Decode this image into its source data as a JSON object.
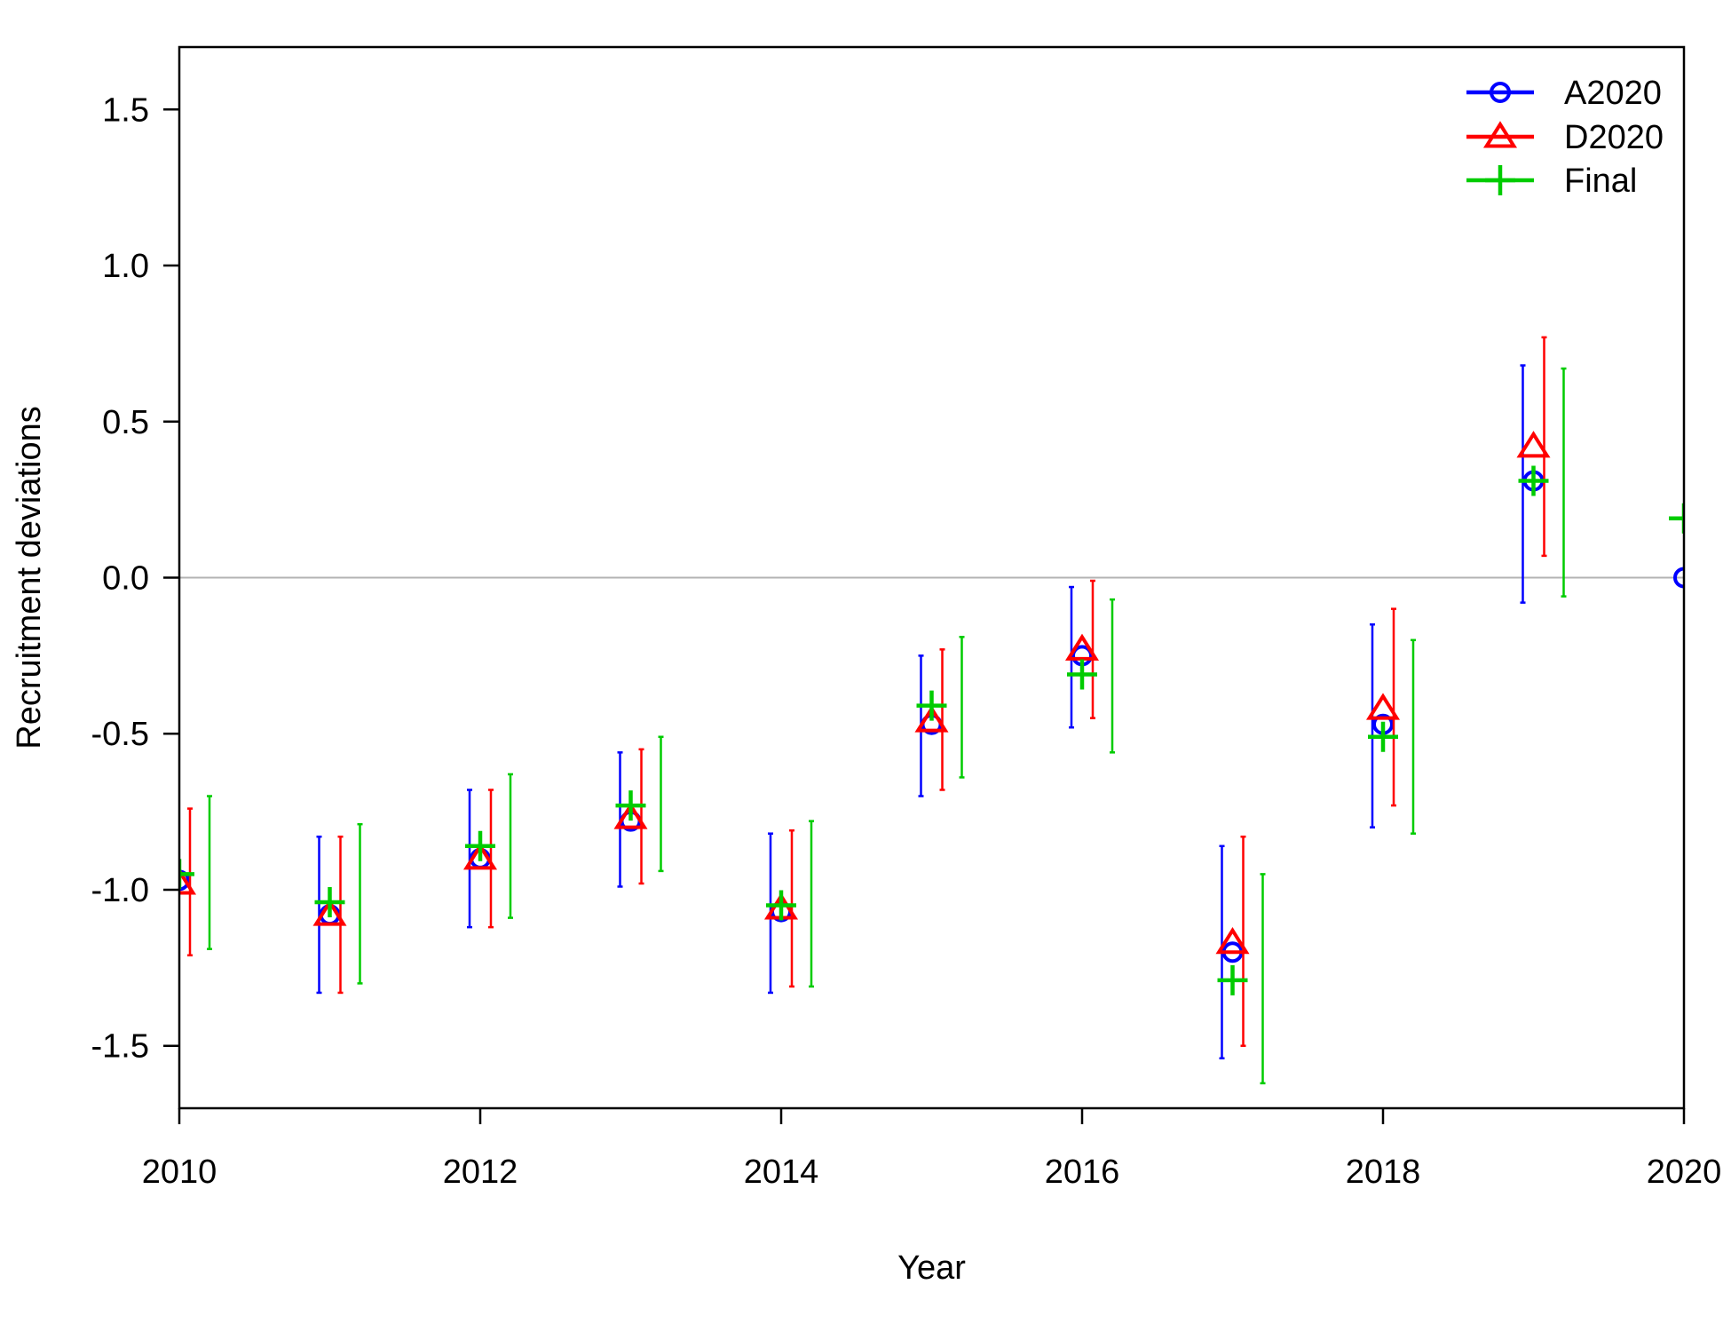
{
  "chart_data": {
    "type": "scatter",
    "title": "",
    "xlabel": "Year",
    "ylabel": "Recruitment deviations",
    "xlim": [
      2010,
      2020
    ],
    "ylim": [
      -1.7,
      1.7
    ],
    "x_ticks": [
      "2010",
      "2012",
      "2014",
      "2016",
      "2018",
      "2020"
    ],
    "y_ticks": [
      "-1.5",
      "-1.0",
      "-0.5",
      "0.0",
      "0.5",
      "1.0",
      "1.5"
    ],
    "reference_line": 0,
    "legend_position": "top-right",
    "series": [
      {
        "name": "A2020",
        "color": "#0000FF",
        "marker": "circle",
        "x": [
          2010,
          2011,
          2012,
          2013,
          2014,
          2015,
          2016,
          2017,
          2018,
          2019,
          2020
        ],
        "y": [
          -0.97,
          -1.08,
          -0.9,
          -0.78,
          -1.07,
          -0.47,
          -0.25,
          -1.2,
          -0.47,
          0.31,
          0.0
        ],
        "lower": [
          -1.22,
          -1.33,
          -1.12,
          -0.99,
          -1.33,
          -0.7,
          -0.48,
          -1.54,
          -0.8,
          -0.08,
          null
        ],
        "upper": [
          -0.73,
          -0.83,
          -0.68,
          -0.56,
          -0.82,
          -0.25,
          -0.03,
          -0.86,
          -0.15,
          0.68,
          null
        ]
      },
      {
        "name": "D2020",
        "color": "#FF0000",
        "marker": "triangle",
        "x": [
          2010,
          2011,
          2012,
          2013,
          2014,
          2015,
          2016,
          2017,
          2018,
          2019
        ],
        "y": [
          -0.98,
          -1.08,
          -0.9,
          -0.77,
          -1.06,
          -0.46,
          -0.23,
          -1.17,
          -0.42,
          0.42
        ],
        "lower": [
          -1.21,
          -1.33,
          -1.12,
          -0.98,
          -1.31,
          -0.68,
          -0.45,
          -1.5,
          -0.73,
          0.07
        ],
        "upper": [
          -0.74,
          -0.83,
          -0.68,
          -0.55,
          -0.81,
          -0.23,
          -0.01,
          -0.83,
          -0.1,
          0.77
        ]
      },
      {
        "name": "Final",
        "color": "#00CC00",
        "marker": "plus",
        "x": [
          2010,
          2011,
          2012,
          2013,
          2014,
          2015,
          2016,
          2017,
          2018,
          2019,
          2020
        ],
        "y": [
          -0.95,
          -1.04,
          -0.86,
          -0.73,
          -1.05,
          -0.41,
          -0.31,
          -1.29,
          -0.51,
          0.31,
          0.19
        ],
        "lower": [
          -1.19,
          -1.3,
          -1.09,
          -0.94,
          -1.31,
          -0.64,
          -0.56,
          -1.62,
          -0.82,
          -0.06,
          null
        ],
        "upper": [
          -0.7,
          -0.79,
          -0.63,
          -0.51,
          -0.78,
          -0.19,
          -0.07,
          -0.95,
          -0.2,
          0.67,
          null
        ]
      }
    ]
  }
}
